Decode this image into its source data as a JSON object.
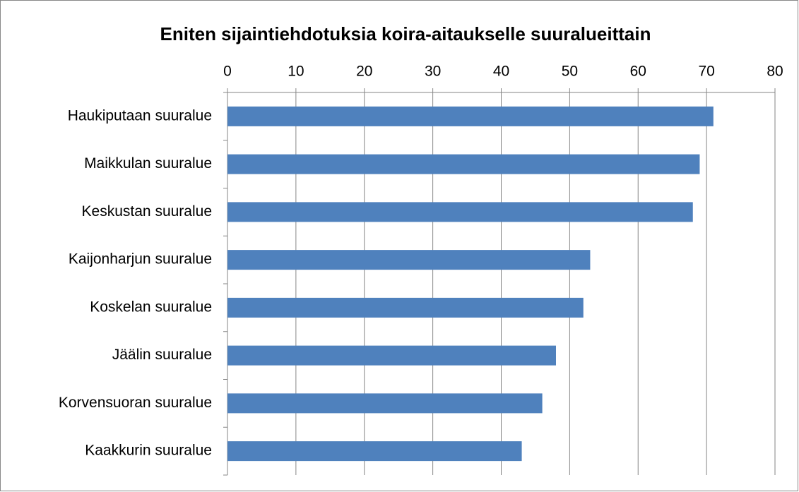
{
  "chart_data": {
    "type": "bar",
    "orientation": "horizontal",
    "title": "Eniten sijaintiehdotuksia koira-aitaukselle suuralueittain",
    "categories": [
      "Haukiputaan suuralue",
      "Maikkulan suuralue",
      "Keskustan suuralue",
      "Kaijonharjun suuralue",
      "Koskelan suuralue",
      "Jäälin suuralue",
      "Korvensuoran suuralue",
      "Kaakkurin suuralue"
    ],
    "values": [
      71,
      69,
      68,
      53,
      52,
      48,
      46,
      43
    ],
    "color": "#4f81bd",
    "xlim": [
      0,
      80
    ],
    "xticks": [
      0,
      10,
      20,
      30,
      40,
      50,
      60,
      70,
      80
    ],
    "grid": true,
    "x_axis_position": "top"
  }
}
